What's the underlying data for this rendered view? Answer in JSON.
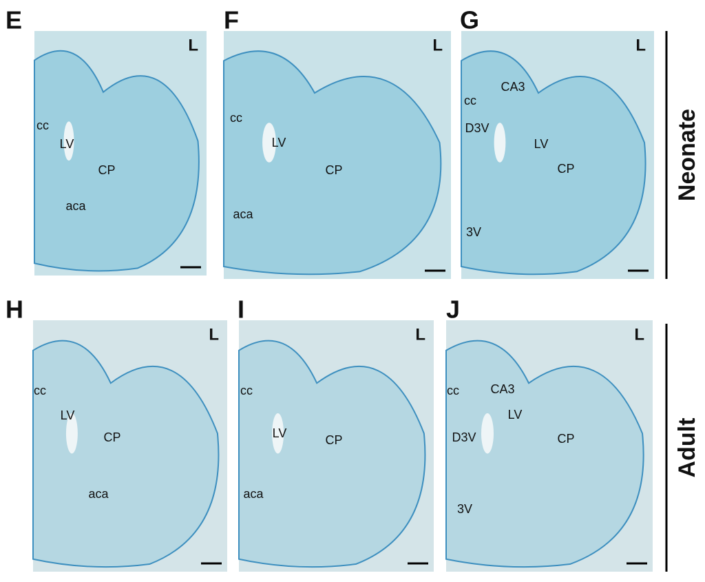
{
  "rows": [
    {
      "label": "Neonate"
    },
    {
      "label": "Adult"
    }
  ],
  "panels": [
    {
      "letter": "E",
      "side": "L",
      "regions": [
        "cc",
        "LV",
        "CP",
        "aca"
      ]
    },
    {
      "letter": "F",
      "side": "L",
      "regions": [
        "cc",
        "LV",
        "CP",
        "aca"
      ]
    },
    {
      "letter": "G",
      "side": "L",
      "regions": [
        "CA3",
        "cc",
        "D3V",
        "LV",
        "CP",
        "3V"
      ]
    },
    {
      "letter": "H",
      "side": "L",
      "regions": [
        "cc",
        "LV",
        "CP",
        "aca"
      ]
    },
    {
      "letter": "I",
      "side": "L",
      "regions": [
        "cc",
        "LV",
        "CP",
        "aca"
      ]
    },
    {
      "letter": "J",
      "side": "L",
      "regions": [
        "CA3",
        "cc",
        "LV",
        "D3V",
        "CP",
        "3V"
      ]
    }
  ]
}
